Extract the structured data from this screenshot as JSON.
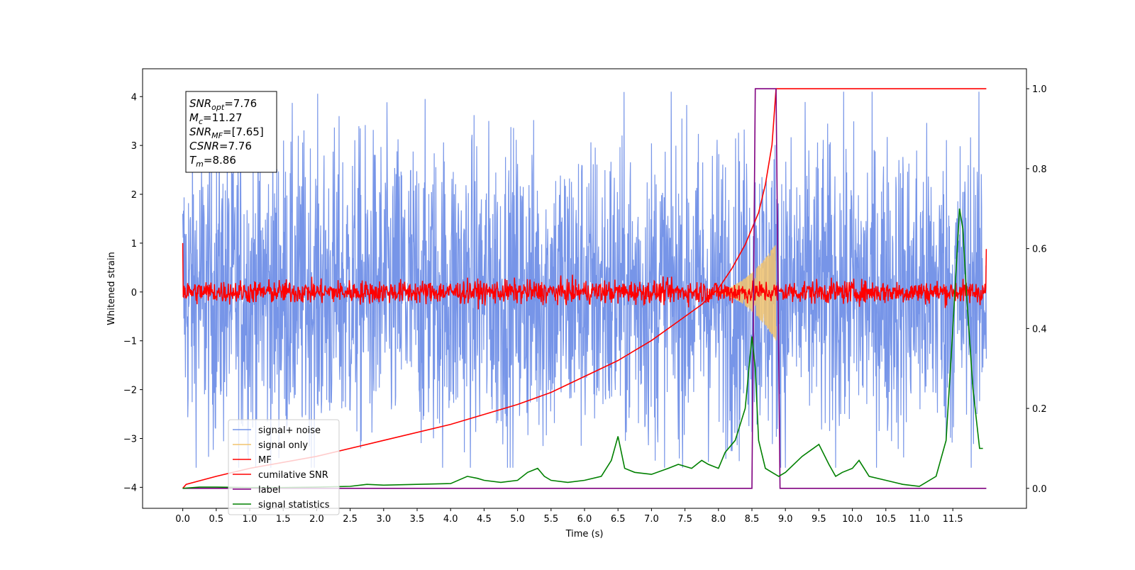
{
  "chart_data": {
    "type": "line",
    "xlabel": "Time (s)",
    "ylabel": "Whitened strain",
    "xlim": [
      -0.6,
      12.6
    ],
    "ylim": [
      -4.43,
      4.57
    ],
    "y2lim": [
      -0.05,
      1.05
    ],
    "xticks": [
      "0.0",
      "0.5",
      "1.0",
      "1.5",
      "2.0",
      "2.5",
      "3.0",
      "3.5",
      "4.0",
      "4.5",
      "5.0",
      "5.5",
      "6.0",
      "6.5",
      "7.0",
      "7.5",
      "8.0",
      "8.5",
      "9.0",
      "9.5",
      "10.0",
      "10.5",
      "11.0",
      "11.5"
    ],
    "yticks": [
      "4",
      "3",
      "2",
      "1",
      "0",
      "−1",
      "−2",
      "−3",
      "−4"
    ],
    "y2ticks": [
      "1.0",
      "0.8",
      "0.6",
      "0.4",
      "0.2",
      "0.0"
    ],
    "grid": false,
    "legend_position": "lower-left",
    "info_box": {
      "lines": [
        {
          "sym": "SNR",
          "sub": "opt",
          "val": "=7.76"
        },
        {
          "sym": "M",
          "sub": "c",
          "val": "=11.27"
        },
        {
          "sym": "SNR",
          "sub": "MF",
          "val": "=[7.65]"
        },
        {
          "sym": "CSNR",
          "sub": "",
          "val": "=7.76"
        },
        {
          "sym": "T",
          "sub": "m",
          "val": "=8.86"
        }
      ]
    },
    "series": [
      {
        "name": "signal+ noise",
        "color": "#7795e8",
        "axis": "left",
        "style": "noise",
        "range": [
          0,
          12
        ],
        "envelope": [
          -3.6,
          4.1
        ],
        "typical_amplitude": 1.6
      },
      {
        "name": "signal only",
        "color": "#f2c46e",
        "axis": "left",
        "style": "chirp",
        "range": [
          7.8,
          8.86
        ],
        "peak_amplitude": 1.0
      },
      {
        "name": "MF",
        "color": "#ff0000",
        "axis": "left",
        "style": "noise",
        "range": [
          0,
          12
        ],
        "typical_amplitude": 0.2,
        "edge_values": [
          1.0,
          0.88
        ]
      },
      {
        "name": "cumilative SNR",
        "color": "#ff0000",
        "axis": "right",
        "x": [
          0,
          0.05,
          0.5,
          1.0,
          2.0,
          3.0,
          4.0,
          5.0,
          5.5,
          6.0,
          6.5,
          7.0,
          7.5,
          7.75,
          8.0,
          8.2,
          8.4,
          8.6,
          8.7,
          8.8,
          8.86,
          12.0
        ],
        "values": [
          0.0,
          0.01,
          0.03,
          0.05,
          0.08,
          0.12,
          0.16,
          0.21,
          0.24,
          0.28,
          0.32,
          0.37,
          0.43,
          0.46,
          0.5,
          0.55,
          0.61,
          0.69,
          0.76,
          0.86,
          1.0,
          1.0
        ]
      },
      {
        "name": "label",
        "color": "#800080",
        "axis": "right",
        "x": [
          0,
          8.5,
          8.55,
          8.86,
          8.92,
          12.0
        ],
        "values": [
          0,
          0,
          1,
          1,
          0,
          0
        ]
      },
      {
        "name": "signal statistics",
        "color": "#008000",
        "axis": "right",
        "x": [
          0,
          0.25,
          0.5,
          1.0,
          1.5,
          2.0,
          2.5,
          2.75,
          3.0,
          3.5,
          4.0,
          4.25,
          4.4,
          4.5,
          4.75,
          5.0,
          5.15,
          5.3,
          5.4,
          5.5,
          5.75,
          6.0,
          6.25,
          6.4,
          6.5,
          6.6,
          6.75,
          7.0,
          7.25,
          7.4,
          7.6,
          7.75,
          7.85,
          8.0,
          8.1,
          8.25,
          8.4,
          8.5,
          8.55,
          8.6,
          8.7,
          8.8,
          8.9,
          9.0,
          9.25,
          9.5,
          9.65,
          9.75,
          9.85,
          10.0,
          10.1,
          10.25,
          10.5,
          10.75,
          11.0,
          11.25,
          11.4,
          11.5,
          11.6,
          11.65,
          11.7,
          11.8,
          11.9,
          11.95
        ],
        "values": [
          0.0,
          0.003,
          0.003,
          0.002,
          0.002,
          0.003,
          0.005,
          0.01,
          0.008,
          0.01,
          0.012,
          0.03,
          0.025,
          0.02,
          0.015,
          0.02,
          0.04,
          0.05,
          0.03,
          0.02,
          0.015,
          0.02,
          0.03,
          0.07,
          0.13,
          0.05,
          0.04,
          0.035,
          0.05,
          0.06,
          0.05,
          0.07,
          0.06,
          0.05,
          0.09,
          0.12,
          0.2,
          0.38,
          0.3,
          0.12,
          0.05,
          0.04,
          0.03,
          0.04,
          0.08,
          0.11,
          0.06,
          0.03,
          0.04,
          0.05,
          0.07,
          0.03,
          0.02,
          0.01,
          0.005,
          0.03,
          0.12,
          0.4,
          0.7,
          0.65,
          0.5,
          0.25,
          0.1,
          0.1
        ]
      }
    ]
  }
}
